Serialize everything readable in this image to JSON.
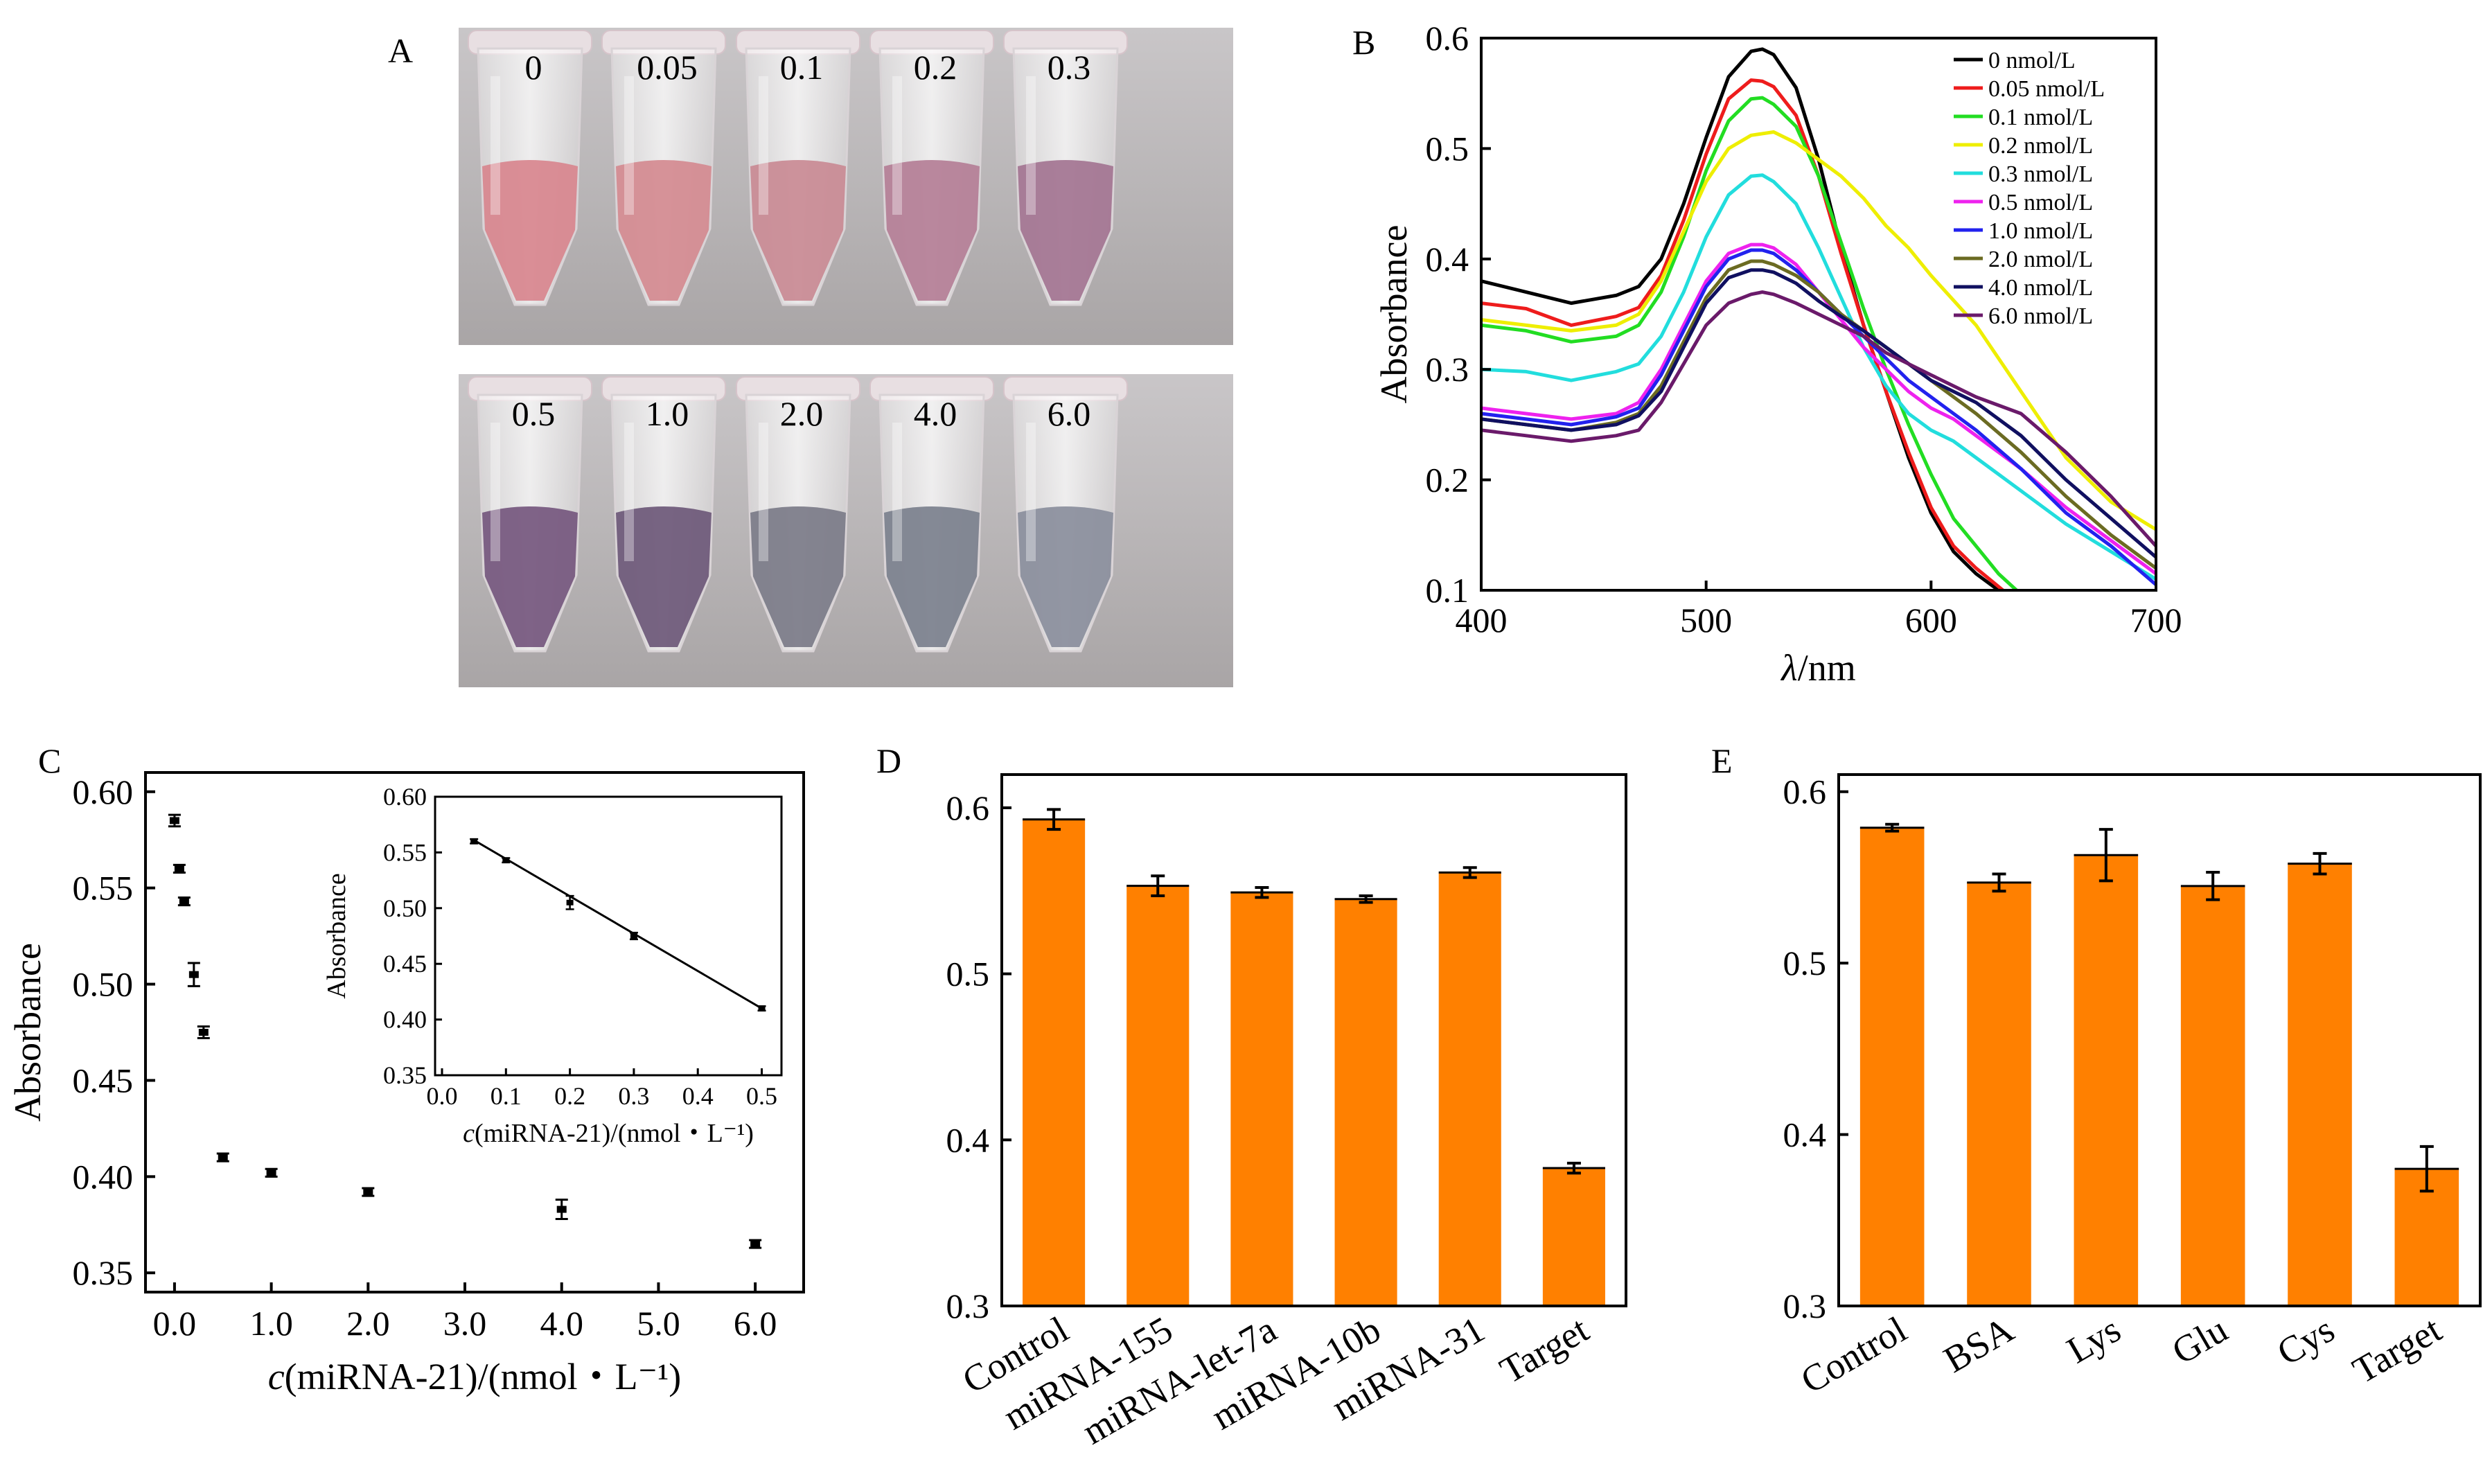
{
  "panels": {
    "A": {
      "letter": "A",
      "tube_labels_top": [
        "0",
        "0.05",
        "0.1",
        "0.2",
        "0.3"
      ],
      "tube_labels_bottom": [
        "0.5",
        "1.0",
        "2.0",
        "4.0",
        "6.0"
      ],
      "tube_colors_top": [
        "#d8868e",
        "#d48a90",
        "#c98a94",
        "#b47e96",
        "#a37491"
      ],
      "tube_colors_bottom": [
        "#75577e",
        "#6d5878",
        "#7b7b88",
        "#7b808d",
        "#8a8e9c"
      ]
    },
    "B": {
      "letter": "B"
    },
    "C": {
      "letter": "C"
    },
    "D": {
      "letter": "D"
    },
    "E": {
      "letter": "E"
    }
  },
  "chart_data": [
    {
      "panel": "B",
      "type": "line",
      "xlabel_italic": "λ",
      "xlabel_rest": "/nm",
      "ylabel": "Absorbance",
      "xlim": [
        400,
        700
      ],
      "ylim": [
        0.1,
        0.6
      ],
      "xticks": [
        400,
        500,
        600,
        700
      ],
      "yticks": [
        0.1,
        0.2,
        0.3,
        0.4,
        0.5,
        0.6
      ],
      "legend_position": "top-right",
      "series": [
        {
          "name": "0 nmol/L",
          "color": "#000000",
          "x": [
            400,
            420,
            440,
            460,
            470,
            480,
            490,
            500,
            510,
            520,
            525,
            530,
            540,
            550,
            560,
            570,
            580,
            590,
            600,
            610,
            620,
            630
          ],
          "y": [
            0.38,
            0.37,
            0.36,
            0.367,
            0.375,
            0.4,
            0.45,
            0.51,
            0.565,
            0.588,
            0.59,
            0.585,
            0.555,
            0.49,
            0.41,
            0.34,
            0.28,
            0.22,
            0.17,
            0.135,
            0.115,
            0.1
          ]
        },
        {
          "name": "0.05 nmol/L",
          "color": "#ee1c1c",
          "x": [
            400,
            420,
            440,
            460,
            470,
            480,
            490,
            500,
            510,
            520,
            525,
            530,
            540,
            550,
            560,
            570,
            580,
            590,
            600,
            610,
            620,
            632
          ],
          "y": [
            0.36,
            0.355,
            0.34,
            0.348,
            0.356,
            0.385,
            0.435,
            0.495,
            0.545,
            0.562,
            0.561,
            0.556,
            0.53,
            0.475,
            0.405,
            0.34,
            0.28,
            0.225,
            0.175,
            0.14,
            0.12,
            0.1
          ]
        },
        {
          "name": "0.1 nmol/L",
          "color": "#22dd22",
          "x": [
            400,
            420,
            440,
            460,
            470,
            480,
            490,
            500,
            510,
            520,
            525,
            530,
            540,
            550,
            560,
            570,
            580,
            590,
            600,
            610,
            620,
            630,
            638
          ],
          "y": [
            0.34,
            0.335,
            0.325,
            0.33,
            0.34,
            0.37,
            0.42,
            0.48,
            0.525,
            0.545,
            0.546,
            0.54,
            0.52,
            0.475,
            0.415,
            0.355,
            0.3,
            0.25,
            0.205,
            0.165,
            0.14,
            0.115,
            0.1
          ]
        },
        {
          "name": "0.2 nmol/L",
          "color": "#eeee00",
          "x": [
            400,
            420,
            440,
            460,
            470,
            480,
            490,
            500,
            510,
            520,
            530,
            540,
            550,
            560,
            570,
            580,
            590,
            600,
            620,
            640,
            660,
            680,
            700
          ],
          "y": [
            0.345,
            0.34,
            0.335,
            0.34,
            0.35,
            0.38,
            0.425,
            0.47,
            0.5,
            0.512,
            0.515,
            0.505,
            0.49,
            0.475,
            0.455,
            0.43,
            0.41,
            0.385,
            0.34,
            0.28,
            0.22,
            0.18,
            0.155
          ]
        },
        {
          "name": "0.3 nmol/L",
          "color": "#22dddd",
          "x": [
            400,
            420,
            440,
            460,
            470,
            480,
            490,
            500,
            510,
            520,
            525,
            530,
            540,
            550,
            560,
            570,
            580,
            590,
            600,
            610,
            620,
            640,
            660,
            680,
            700
          ],
          "y": [
            0.3,
            0.298,
            0.29,
            0.298,
            0.305,
            0.33,
            0.37,
            0.42,
            0.458,
            0.475,
            0.476,
            0.47,
            0.45,
            0.41,
            0.365,
            0.32,
            0.285,
            0.26,
            0.245,
            0.235,
            0.22,
            0.19,
            0.16,
            0.135,
            0.11
          ]
        },
        {
          "name": "0.5 nmol/L",
          "color": "#ee22ee",
          "x": [
            400,
            420,
            440,
            460,
            470,
            480,
            490,
            500,
            510,
            520,
            525,
            530,
            540,
            550,
            560,
            570,
            580,
            590,
            600,
            610,
            620,
            640,
            660,
            680,
            700
          ],
          "y": [
            0.265,
            0.26,
            0.255,
            0.26,
            0.27,
            0.3,
            0.34,
            0.38,
            0.405,
            0.413,
            0.413,
            0.41,
            0.395,
            0.37,
            0.345,
            0.32,
            0.3,
            0.28,
            0.265,
            0.255,
            0.24,
            0.21,
            0.175,
            0.145,
            0.115
          ]
        },
        {
          "name": "1.0 nmol/L",
          "color": "#2222ee",
          "x": [
            400,
            420,
            440,
            460,
            470,
            480,
            490,
            500,
            510,
            520,
            525,
            530,
            540,
            550,
            560,
            570,
            580,
            590,
            600,
            610,
            620,
            640,
            660,
            680,
            700
          ],
          "y": [
            0.26,
            0.255,
            0.25,
            0.257,
            0.265,
            0.295,
            0.335,
            0.375,
            0.4,
            0.408,
            0.408,
            0.405,
            0.39,
            0.37,
            0.35,
            0.33,
            0.31,
            0.29,
            0.275,
            0.26,
            0.245,
            0.21,
            0.17,
            0.14,
            0.105
          ]
        },
        {
          "name": "2.0 nmol/L",
          "color": "#6b6b22",
          "x": [
            400,
            420,
            440,
            460,
            470,
            480,
            490,
            500,
            510,
            520,
            525,
            530,
            540,
            550,
            560,
            570,
            580,
            590,
            600,
            610,
            620,
            640,
            660,
            680,
            700
          ],
          "y": [
            0.255,
            0.25,
            0.245,
            0.252,
            0.26,
            0.285,
            0.325,
            0.365,
            0.39,
            0.398,
            0.398,
            0.395,
            0.385,
            0.37,
            0.35,
            0.335,
            0.32,
            0.305,
            0.29,
            0.275,
            0.26,
            0.225,
            0.185,
            0.15,
            0.12
          ]
        },
        {
          "name": "4.0 nmol/L",
          "color": "#101060",
          "x": [
            400,
            420,
            440,
            460,
            470,
            480,
            490,
            500,
            510,
            520,
            525,
            530,
            540,
            550,
            560,
            570,
            580,
            590,
            600,
            610,
            620,
            640,
            660,
            680,
            700
          ],
          "y": [
            0.255,
            0.25,
            0.245,
            0.25,
            0.258,
            0.28,
            0.32,
            0.36,
            0.383,
            0.39,
            0.39,
            0.388,
            0.378,
            0.362,
            0.348,
            0.335,
            0.32,
            0.305,
            0.29,
            0.28,
            0.27,
            0.24,
            0.2,
            0.165,
            0.13
          ]
        },
        {
          "name": "6.0 nmol/L",
          "color": "#6a1a6a",
          "x": [
            400,
            420,
            440,
            460,
            470,
            480,
            490,
            500,
            510,
            520,
            525,
            530,
            540,
            550,
            560,
            570,
            580,
            590,
            600,
            610,
            620,
            640,
            660,
            680,
            700
          ],
          "y": [
            0.245,
            0.24,
            0.235,
            0.24,
            0.245,
            0.27,
            0.305,
            0.34,
            0.36,
            0.368,
            0.37,
            0.368,
            0.36,
            0.35,
            0.34,
            0.33,
            0.315,
            0.305,
            0.295,
            0.285,
            0.275,
            0.26,
            0.225,
            0.185,
            0.14
          ]
        }
      ]
    },
    {
      "panel": "C",
      "type": "scatter",
      "xlabel_italic": "c",
      "xlabel_rest": "(miRNA-21)/(nmol・L⁻¹)",
      "ylabel": "Absorbance",
      "xlim": [
        -0.3,
        6.5
      ],
      "ylim": [
        0.34,
        0.61
      ],
      "xticks": [
        0,
        1,
        2,
        3,
        4,
        5,
        6
      ],
      "xtick_labels": [
        "0.0",
        "1.0",
        "2.0",
        "3.0",
        "4.0",
        "5.0",
        "6.0"
      ],
      "yticks": [
        0.35,
        0.4,
        0.45,
        0.5,
        0.55,
        0.6
      ],
      "ytick_labels": [
        "0.35",
        "0.40",
        "0.45",
        "0.50",
        "0.55",
        "0.60"
      ],
      "x": [
        0,
        0.05,
        0.1,
        0.2,
        0.3,
        0.5,
        1.0,
        2.0,
        4.0,
        6.0
      ],
      "y": [
        0.585,
        0.56,
        0.543,
        0.505,
        0.475,
        0.41,
        0.402,
        0.392,
        0.383,
        0.365
      ],
      "err": [
        0.003,
        0.002,
        0.002,
        0.006,
        0.003,
        0.002,
        0.002,
        0.002,
        0.005,
        0.002
      ],
      "inset": {
        "type": "scatter",
        "xlabel_italic": "c",
        "xlabel_rest": "(miRNA-21)/(nmol・L⁻¹)",
        "ylabel": "Absorbance",
        "xlim": [
          0,
          0.52
        ],
        "ylim": [
          0.35,
          0.6
        ],
        "xticks": [
          0,
          0.1,
          0.2,
          0.3,
          0.4,
          0.5
        ],
        "xtick_labels": [
          "0.0",
          "0.1",
          "0.2",
          "0.3",
          "0.4",
          "0.5"
        ],
        "yticks": [
          0.35,
          0.4,
          0.45,
          0.5,
          0.55,
          0.6
        ],
        "ytick_labels": [
          "0.35",
          "0.40",
          "0.45",
          "0.50",
          "0.55",
          "0.60"
        ],
        "x": [
          0.05,
          0.1,
          0.2,
          0.3,
          0.5
        ],
        "y": [
          0.56,
          0.543,
          0.505,
          0.475,
          0.41
        ],
        "err": [
          0.002,
          0.002,
          0.006,
          0.003,
          0.002
        ],
        "fit_line": {
          "x": [
            0.05,
            0.5
          ],
          "y": [
            0.561,
            0.41
          ]
        }
      }
    },
    {
      "panel": "D",
      "type": "bar",
      "categories": [
        "Control",
        "miRNA-155",
        "miRNA-let-7a",
        "miRNA-10b",
        "miRNA-31",
        "Target"
      ],
      "values": [
        0.593,
        0.553,
        0.549,
        0.545,
        0.561,
        0.383
      ],
      "err": [
        0.006,
        0.006,
        0.003,
        0.002,
        0.003,
        0.003
      ],
      "ylim": [
        0.3,
        0.62
      ],
      "yticks": [
        0.3,
        0.4,
        0.5,
        0.6
      ],
      "ytick_labels": [
        "0.3",
        "0.4",
        "0.5",
        "0.6"
      ],
      "color": "#ff8000"
    },
    {
      "panel": "E",
      "type": "bar",
      "categories": [
        "Control",
        "BSA",
        "Lys",
        "Glu",
        "Cys",
        "Target"
      ],
      "values": [
        0.579,
        0.547,
        0.563,
        0.545,
        0.558,
        0.38
      ],
      "err": [
        0.002,
        0.005,
        0.015,
        0.008,
        0.006,
        0.013
      ],
      "ylim": [
        0.3,
        0.61
      ],
      "yticks": [
        0.3,
        0.4,
        0.5,
        0.6
      ],
      "ytick_labels": [
        "0.3",
        "0.4",
        "0.5",
        "0.6"
      ],
      "color": "#ff8000"
    }
  ]
}
